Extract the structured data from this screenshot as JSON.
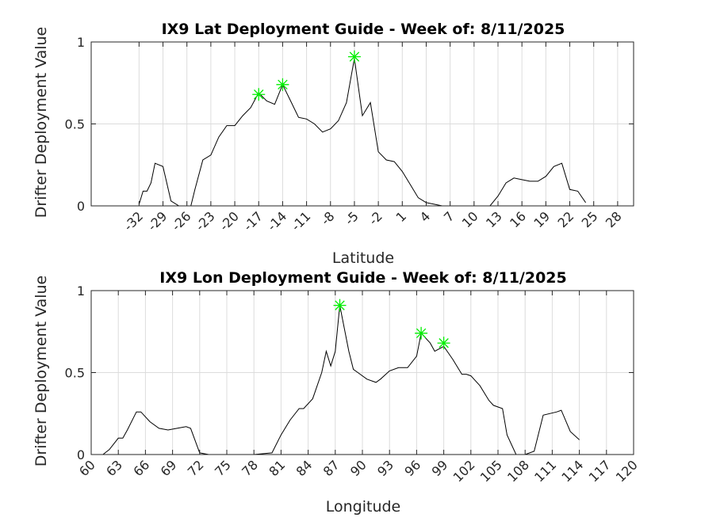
{
  "chart_data": [
    {
      "type": "line",
      "title": "IX9 Lat Deployment Guide - Week of: 8/11/2025",
      "xlabel": "Latitude",
      "ylabel": "Drifter Deployment Value",
      "xlim": [
        -38,
        30
      ],
      "ylim": [
        0,
        1
      ],
      "xticks": [
        -32,
        -29,
        -26,
        -23,
        -20,
        -17,
        -14,
        -11,
        -8,
        -5,
        -2,
        1,
        4,
        7,
        10,
        13,
        16,
        19,
        22,
        25,
        28
      ],
      "yticks": [
        0,
        0.5,
        1
      ],
      "ytick_labels": [
        "0",
        "0.5",
        "1"
      ],
      "grid": true,
      "series": [
        {
          "x": [
            -32,
            -31.5,
            -31,
            -30.5,
            -30,
            -29,
            -28,
            -27,
            -26.5,
            -25.5,
            -25,
            -24,
            -23,
            -22,
            -21,
            -20,
            -19,
            -18,
            -17,
            -16,
            -15,
            -14,
            -13,
            -12,
            -11,
            -10,
            -9,
            -8,
            -7,
            -6,
            -5,
            -4,
            -3,
            -2,
            -1,
            0,
            1,
            2,
            3,
            4,
            5,
            6,
            7,
            8,
            9,
            10,
            11,
            12,
            13,
            14,
            15,
            16,
            17,
            18,
            19,
            20,
            21,
            22,
            23,
            24
          ],
          "y": [
            0.01,
            0.09,
            0.09,
            0.14,
            0.26,
            0.24,
            0.03,
            0,
            0,
            0,
            0.1,
            0.28,
            0.31,
            0.42,
            0.49,
            0.49,
            0.55,
            0.6,
            0.69,
            0.64,
            0.62,
            0.74,
            0.64,
            0.54,
            0.53,
            0.5,
            0.45,
            0.47,
            0.52,
            0.63,
            0.9,
            0.55,
            0.63,
            0.33,
            0.28,
            0.27,
            0.21,
            0.13,
            0.05,
            0.02,
            0.01,
            0,
            0,
            0,
            0,
            0,
            0,
            0,
            0.06,
            0.14,
            0.17,
            0.16,
            0.15,
            0.15,
            0.18,
            0.24,
            0.26,
            0.1,
            0.09,
            0.02
          ]
        }
      ],
      "markers": {
        "x": [
          -17,
          -14,
          -5
        ],
        "y": [
          0.68,
          0.74,
          0.91
        ],
        "color": "#00ee00",
        "symbol": "asterisk"
      }
    },
    {
      "type": "line",
      "title": "IX9 Lon Deployment Guide - Week of: 8/11/2025",
      "xlabel": "Longitude",
      "ylabel": "Drifter Deployment Value",
      "xlim": [
        60,
        120
      ],
      "ylim": [
        0,
        1
      ],
      "xticks": [
        60,
        63,
        66,
        69,
        72,
        75,
        78,
        81,
        84,
        87,
        90,
        93,
        96,
        99,
        102,
        105,
        108,
        111,
        114,
        117,
        120
      ],
      "yticks": [
        0,
        0.5,
        1
      ],
      "ytick_labels": [
        "0",
        "0.5",
        "1"
      ],
      "grid": true,
      "series": [
        {
          "x": [
            61.3,
            62,
            63,
            63.5,
            64,
            65,
            65.5,
            66.5,
            67.5,
            68.5,
            69.5,
            70.5,
            71,
            72,
            73,
            74,
            75,
            76,
            77,
            78,
            80,
            81,
            82,
            83,
            83.5,
            84.5,
            85.5,
            86,
            86.5,
            87,
            87.5,
            88.5,
            89,
            89.5,
            90.5,
            91.5,
            92,
            93,
            94,
            95,
            96,
            96.5,
            97.5,
            98,
            99,
            100,
            101,
            101.5,
            102,
            103,
            104,
            104.5,
            105.5,
            106,
            107,
            108,
            109,
            110,
            111.5,
            112,
            113,
            114
          ],
          "y": [
            0,
            0.03,
            0.1,
            0.1,
            0.15,
            0.26,
            0.26,
            0.2,
            0.16,
            0.15,
            0.16,
            0.17,
            0.16,
            0.01,
            0,
            0,
            0,
            0,
            0,
            0,
            0.01,
            0.12,
            0.21,
            0.28,
            0.28,
            0.34,
            0.5,
            0.63,
            0.54,
            0.63,
            0.91,
            0.63,
            0.52,
            0.5,
            0.46,
            0.44,
            0.46,
            0.51,
            0.53,
            0.53,
            0.6,
            0.74,
            0.68,
            0.63,
            0.66,
            0.58,
            0.49,
            0.49,
            0.48,
            0.42,
            0.33,
            0.3,
            0.28,
            0.12,
            0,
            0,
            0.02,
            0.24,
            0.26,
            0.27,
            0.14,
            0.09
          ]
        }
      ],
      "markers": {
        "x": [
          87.5,
          96.5,
          99
        ],
        "y": [
          0.91,
          0.74,
          0.68
        ],
        "color": "#00ee00",
        "symbol": "asterisk"
      }
    }
  ]
}
